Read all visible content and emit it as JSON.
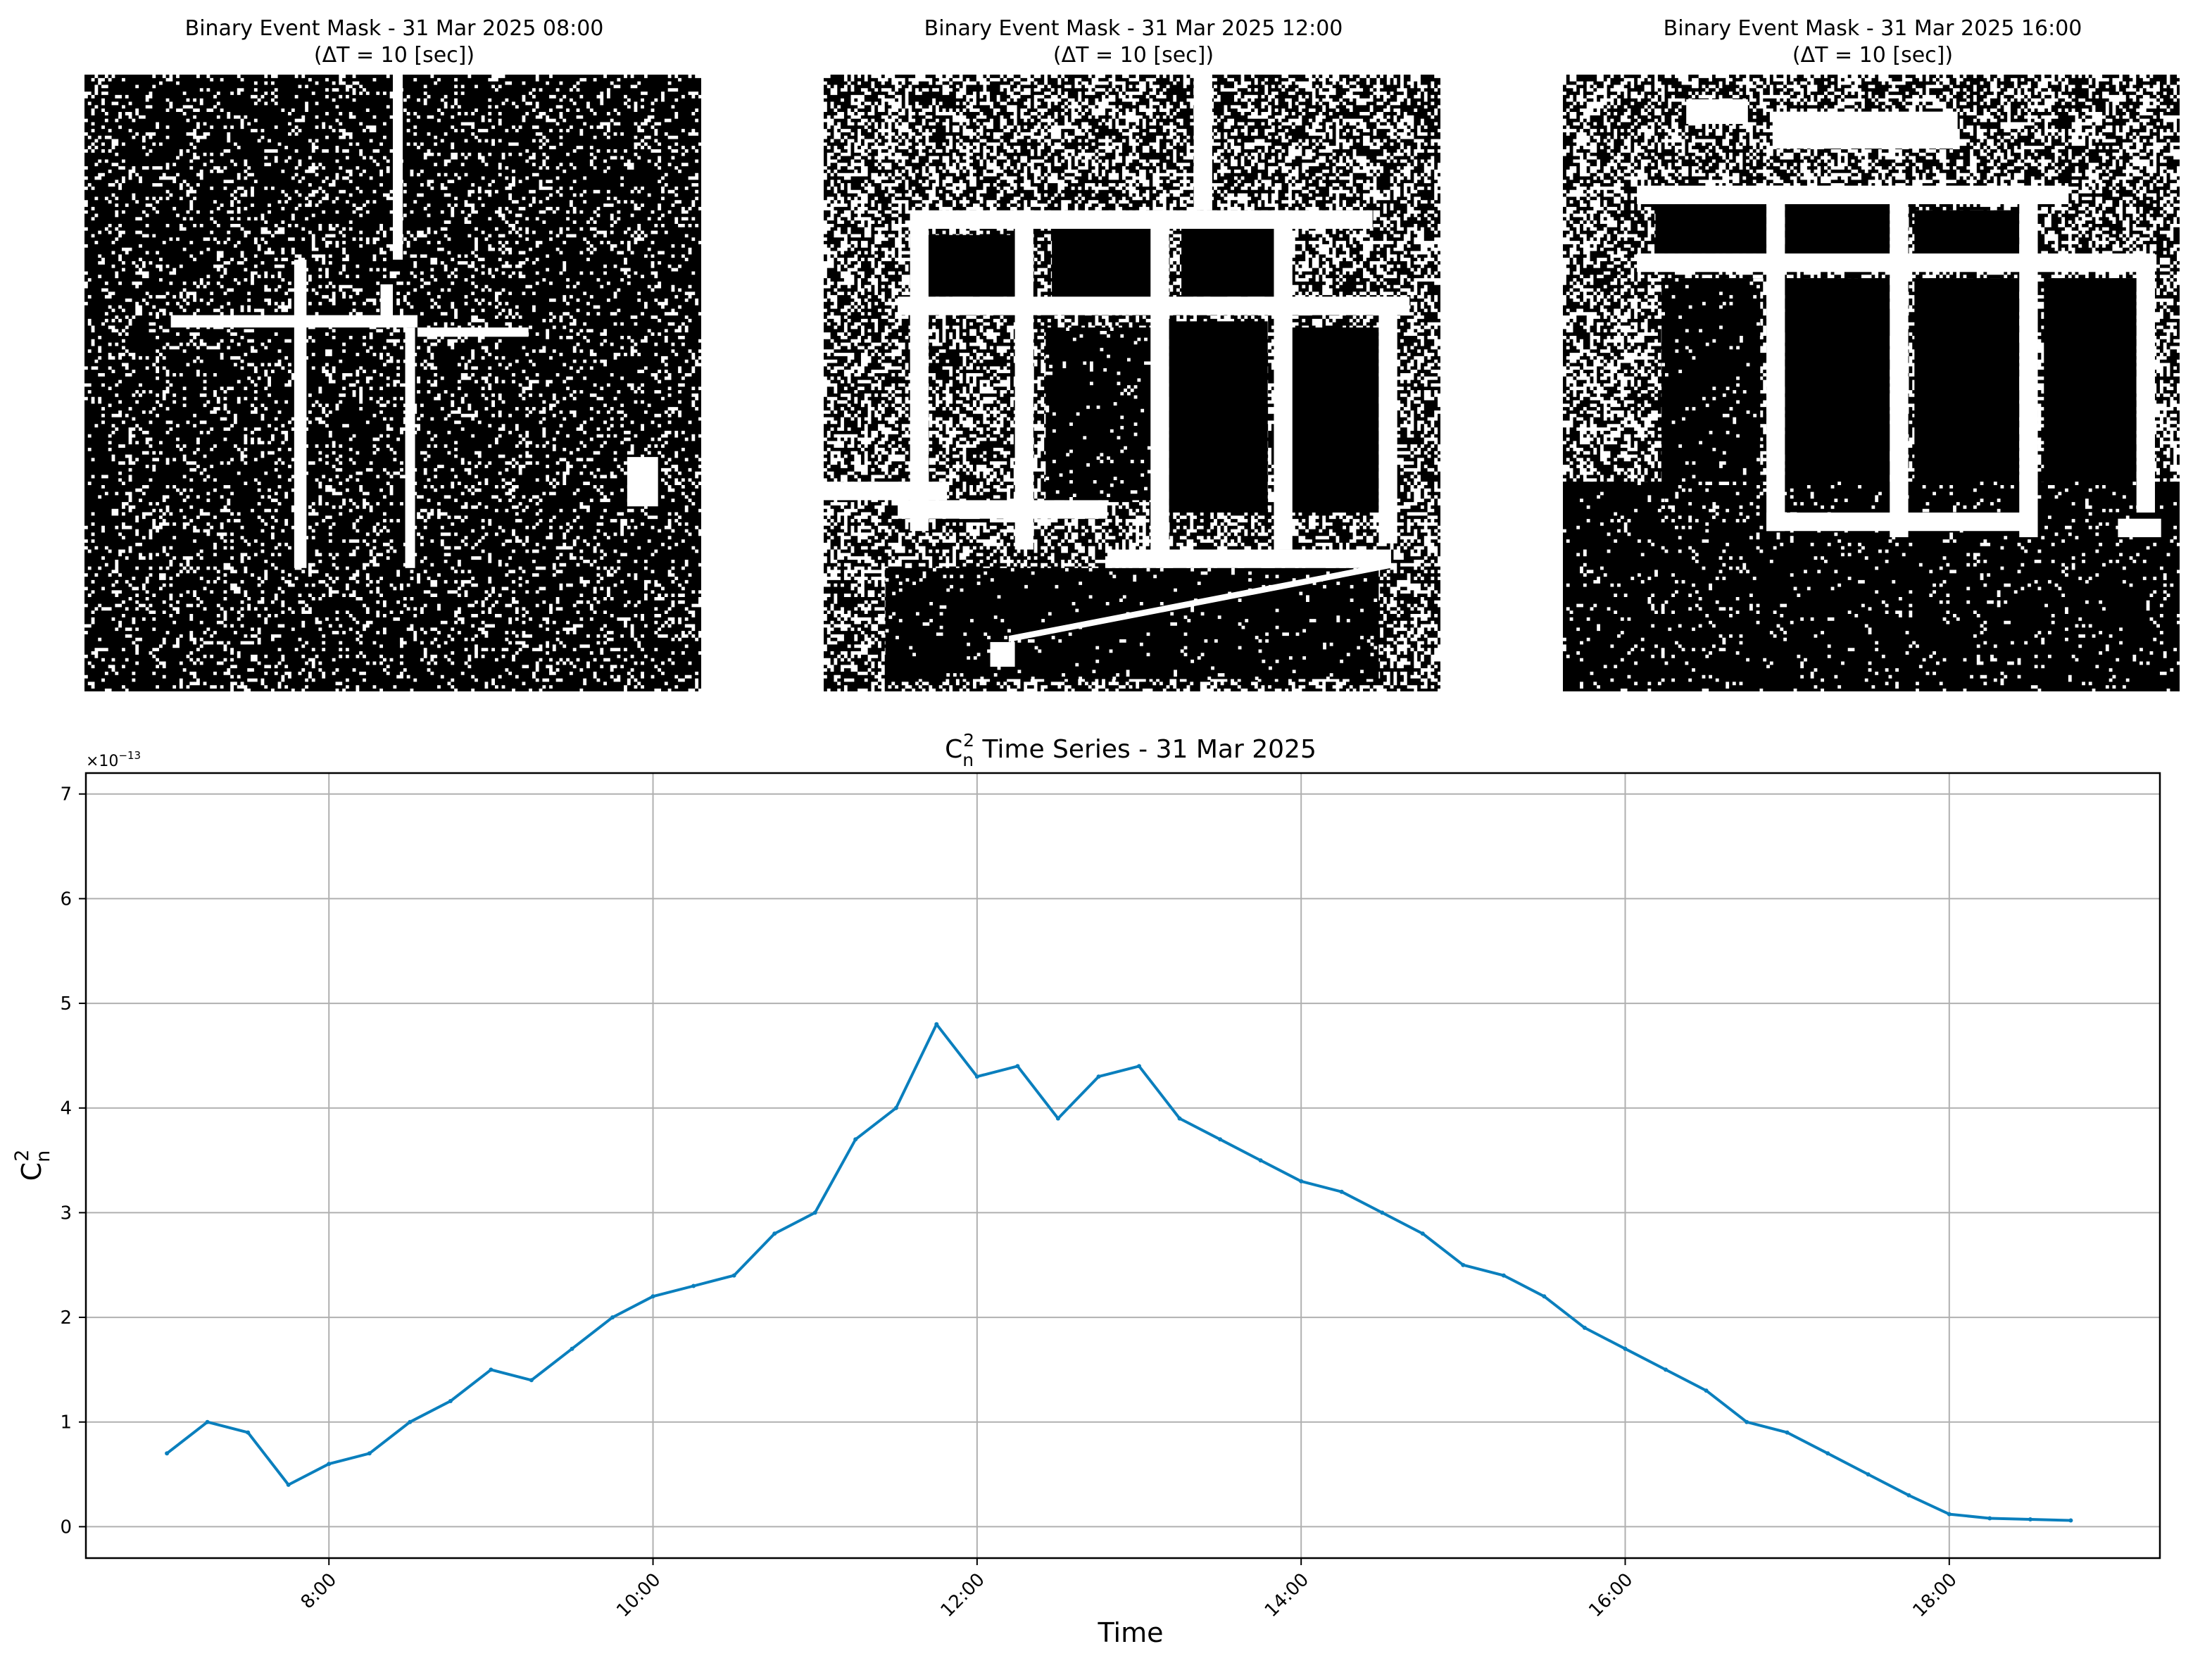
{
  "masks": [
    {
      "title": "Binary Event Mask - 31 Mar 2025 08:00",
      "subtitle": "(ΔT = 10 [sec])"
    },
    {
      "title": "Binary Event Mask - 31 Mar 2025 12:00",
      "subtitle": "(ΔT = 10 [sec])"
    },
    {
      "title": "Binary Event Mask - 31 Mar 2025 16:00",
      "subtitle": "(ΔT = 10 [sec])"
    }
  ],
  "chart_data": {
    "type": "line",
    "title_main": "C",
    "title_sub": "n",
    "title_sup": "2",
    "title_rest": " Time Series - 31 Mar 2025",
    "xlabel": "Time",
    "ylabel_main": "C",
    "ylabel_sub": "n",
    "ylabel_sup": "2",
    "y_offset_text": "×10",
    "y_offset_exp": "−13",
    "ylim": [
      -0.3,
      7.2
    ],
    "xlim_hours": [
      6.5,
      19.3
    ],
    "yticks": [
      0,
      1,
      2,
      3,
      4,
      5,
      6,
      7
    ],
    "xticks": [
      {
        "value": 8,
        "label": "8:00"
      },
      {
        "value": 10,
        "label": "10:00"
      },
      {
        "value": 12,
        "label": "12:00"
      },
      {
        "value": 14,
        "label": "14:00"
      },
      {
        "value": 16,
        "label": "16:00"
      },
      {
        "value": 18,
        "label": "18:00"
      }
    ],
    "grid": true,
    "line_color": "#0a7fbd",
    "series": [
      {
        "x": [
          "07:00",
          "07:15",
          "07:30",
          "07:45",
          "08:00",
          "08:15",
          "08:30",
          "08:45",
          "09:00",
          "09:15",
          "09:30",
          "09:45",
          "10:00",
          "10:15",
          "10:30",
          "10:45",
          "11:00",
          "11:15",
          "11:30",
          "11:45",
          "12:00",
          "12:15",
          "12:30",
          "12:45",
          "13:00",
          "13:15",
          "13:30",
          "13:45",
          "14:00",
          "14:15",
          "14:30",
          "14:45",
          "15:00",
          "15:15",
          "15:30",
          "15:45",
          "16:00",
          "16:15",
          "16:30",
          "16:45",
          "17:00",
          "17:15",
          "17:30",
          "17:45",
          "18:00",
          "18:15",
          "18:30",
          "18:45"
        ],
        "values": [
          0.7,
          1.0,
          0.9,
          0.4,
          0.6,
          0.7,
          1.0,
          1.2,
          1.5,
          1.4,
          1.7,
          2.0,
          2.2,
          2.3,
          2.4,
          2.8,
          3.0,
          3.7,
          4.0,
          4.8,
          4.3,
          4.4,
          3.9,
          4.3,
          4.4,
          3.9,
          3.7,
          3.5,
          3.3,
          3.2,
          3.0,
          2.8,
          2.5,
          2.4,
          2.2,
          1.9,
          1.7,
          1.5,
          1.3,
          1.0,
          0.9,
          0.7,
          0.5,
          0.3,
          0.12,
          0.08,
          0.07,
          0.06
        ]
      }
    ]
  }
}
